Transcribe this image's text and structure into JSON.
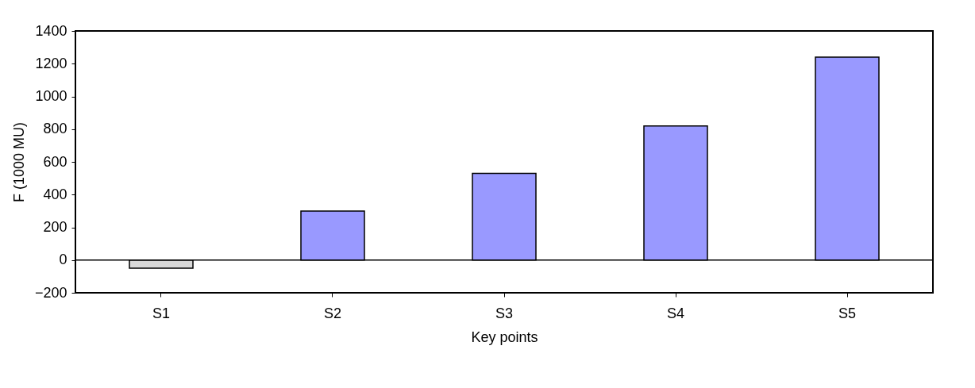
{
  "chart_data": {
    "type": "bar",
    "xlabel": "Key points",
    "ylabel": "F (1000 MU)",
    "categories": [
      "S1",
      "S2",
      "S3",
      "S4",
      "S5"
    ],
    "values": [
      -50,
      300,
      530,
      820,
      1240
    ],
    "colors": [
      "#d9d9d9",
      "#9999ff",
      "#9999ff",
      "#9999ff",
      "#9999ff"
    ],
    "ylim": [
      -200,
      1400
    ],
    "yticks": [
      -200,
      0,
      200,
      400,
      600,
      800,
      1000,
      1200,
      1400
    ],
    "grid": false,
    "ref_lines": [
      {
        "axis": "y",
        "value": 0,
        "color": "#000000"
      }
    ]
  }
}
